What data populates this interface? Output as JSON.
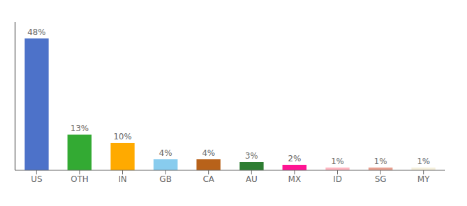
{
  "chart_data": {
    "type": "bar",
    "categories": [
      "US",
      "OTH",
      "IN",
      "GB",
      "CA",
      "AU",
      "MX",
      "ID",
      "SG",
      "MY"
    ],
    "values": [
      48,
      13,
      10,
      4,
      4,
      3,
      2,
      1,
      1,
      1
    ],
    "value_labels": [
      "48%",
      "13%",
      "10%",
      "4%",
      "4%",
      "3%",
      "2%",
      "1%",
      "1%",
      "1%"
    ],
    "colors": [
      "#4D72C9",
      "#33AA33",
      "#FFAA00",
      "#88CCEE",
      "#B8621A",
      "#2E7D32",
      "#FF1493",
      "#FFB6C1",
      "#E8A090",
      "#F5F0DC"
    ],
    "ylim": [
      0,
      54
    ],
    "data_labels": true,
    "tick_labels": "x",
    "grid": false
  }
}
